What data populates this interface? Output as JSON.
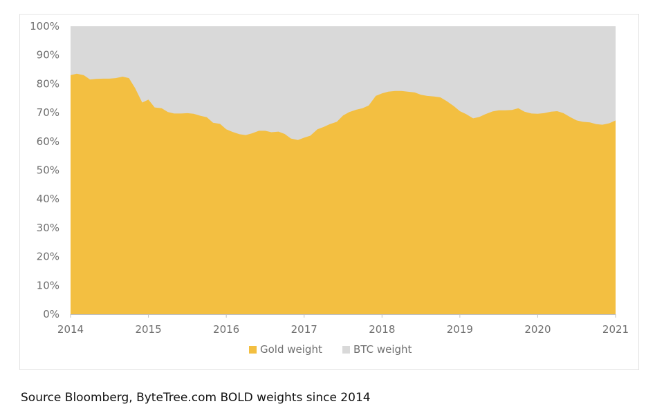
{
  "caption": "Source Bloomberg, ByteTree.com BOLD weights since 2014",
  "chart_data": {
    "type": "area",
    "stacked": true,
    "x_axis": {
      "ticks": [
        "2014",
        "2015",
        "2016",
        "2017",
        "2018",
        "2019",
        "2020",
        "2021"
      ],
      "range": [
        2014,
        2021
      ]
    },
    "y_axis": {
      "ticks": [
        "0%",
        "10%",
        "20%",
        "30%",
        "40%",
        "50%",
        "60%",
        "70%",
        "80%",
        "90%",
        "100%"
      ],
      "range": [
        0,
        100
      ],
      "unit": "%"
    },
    "grid": false,
    "legend_position": "bottom-center",
    "x": [
      2014.0,
      2014.08,
      2014.17,
      2014.25,
      2014.33,
      2014.42,
      2014.5,
      2014.58,
      2014.67,
      2014.75,
      2014.83,
      2014.92,
      2015.0,
      2015.08,
      2015.17,
      2015.25,
      2015.33,
      2015.42,
      2015.5,
      2015.58,
      2015.67,
      2015.75,
      2015.83,
      2015.92,
      2016.0,
      2016.08,
      2016.17,
      2016.25,
      2016.33,
      2016.42,
      2016.5,
      2016.58,
      2016.67,
      2016.75,
      2016.83,
      2016.92,
      2017.0,
      2017.08,
      2017.17,
      2017.25,
      2017.33,
      2017.42,
      2017.5,
      2017.58,
      2017.67,
      2017.75,
      2017.83,
      2017.92,
      2018.0,
      2018.08,
      2018.17,
      2018.25,
      2018.33,
      2018.42,
      2018.5,
      2018.58,
      2018.67,
      2018.75,
      2018.83,
      2018.92,
      2019.0,
      2019.08,
      2019.17,
      2019.25,
      2019.33,
      2019.42,
      2019.5,
      2019.58,
      2019.67,
      2019.75,
      2019.83,
      2019.92,
      2020.0,
      2020.08,
      2020.17,
      2020.25,
      2020.33,
      2020.42,
      2020.5,
      2020.58,
      2020.67,
      2020.75,
      2020.83,
      2020.92,
      2021.0
    ],
    "series": [
      {
        "name": "Gold weight",
        "color": "#f3bf41",
        "values": [
          83,
          83.5,
          83,
          81.5,
          81.7,
          81.8,
          81.8,
          82,
          82.5,
          82,
          78.5,
          73.5,
          74.5,
          71.8,
          71.5,
          70.2,
          69.7,
          69.7,
          69.8,
          69.6,
          68.9,
          68.4,
          66.5,
          66.1,
          64.2,
          63.3,
          62.5,
          62.2,
          62.8,
          63.7,
          63.7,
          63.2,
          63.4,
          62.6,
          61,
          60.5,
          61.3,
          62,
          64.2,
          65,
          66,
          66.8,
          69,
          70.2,
          71,
          71.5,
          72.5,
          75.8,
          76.7,
          77.3,
          77.5,
          77.5,
          77.3,
          77,
          76.2,
          75.8,
          75.6,
          75.3,
          74,
          72.3,
          70.5,
          69.5,
          68,
          68.5,
          69.5,
          70.4,
          70.8,
          70.8,
          70.9,
          71.5,
          70.3,
          69.7,
          69.6,
          69.8,
          70.3,
          70.5,
          69.8,
          68.4,
          67.3,
          66.8,
          66.6,
          66,
          65.8,
          66.3,
          67.3
        ]
      },
      {
        "name": "BTC weight",
        "color": "#d9d9d9",
        "note": "remainder to 100%"
      }
    ]
  }
}
